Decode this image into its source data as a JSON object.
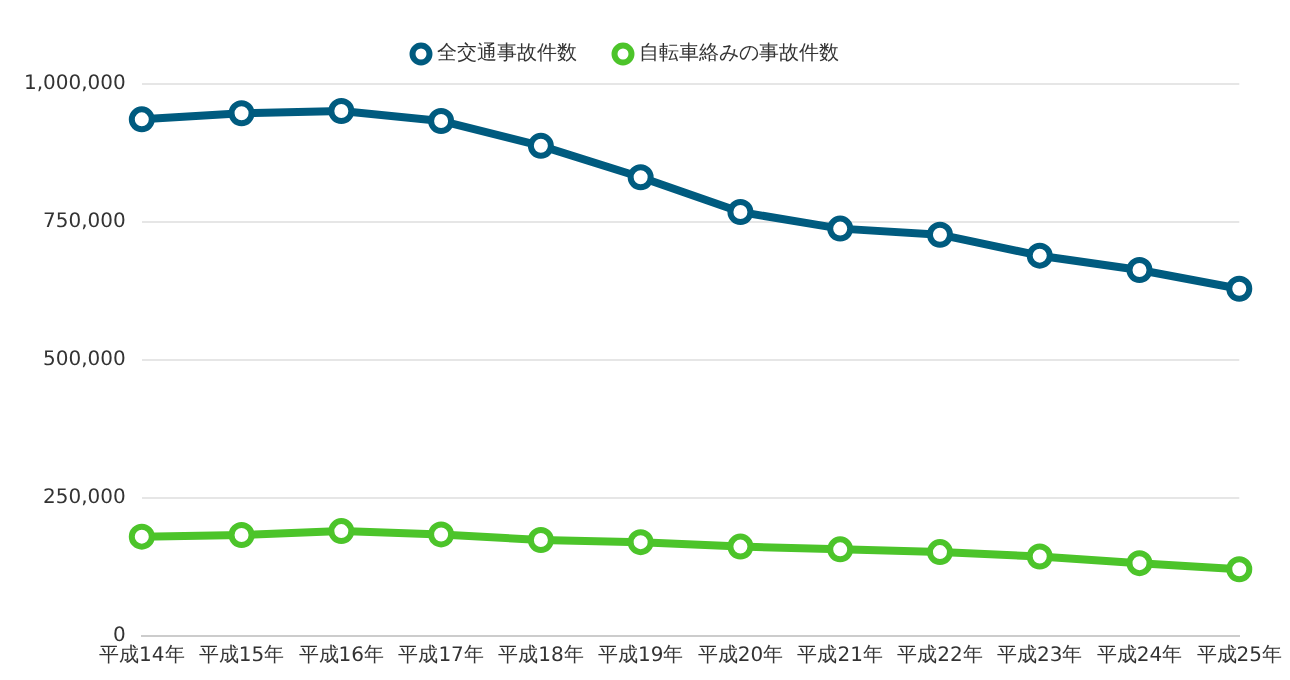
{
  "chart_data": {
    "type": "line",
    "categories": [
      "平成14年",
      "平成15年",
      "平成16年",
      "平成17年",
      "平成18年",
      "平成19年",
      "平成20年",
      "平成21年",
      "平成22年",
      "平成23年",
      "平成24年",
      "平成25年"
    ],
    "series": [
      {
        "name": "全交通事故件数",
        "color": "#005b7f",
        "values": [
          936000,
          947000,
          951000,
          933000,
          888000,
          831000,
          768000,
          738000,
          727000,
          689000,
          663000,
          629000
        ]
      },
      {
        "name": "自転車絡みの事故件数",
        "color": "#4cc42a",
        "values": [
          180000,
          183000,
          190000,
          184000,
          174000,
          170000,
          162000,
          157000,
          152000,
          144000,
          132000,
          121000
        ]
      }
    ],
    "ylim": [
      0,
      1000000
    ],
    "yticks": [
      0,
      {
        "value": 250000,
        "label": "250,000"
      },
      {
        "value": 500000,
        "label": "500,000"
      },
      {
        "value": 750000,
        "label": "750,000"
      },
      {
        "value": 1000000,
        "label": "1,000,000"
      }
    ],
    "grid": "y",
    "legend": "top",
    "marker": "circle",
    "line_style": "solid"
  }
}
